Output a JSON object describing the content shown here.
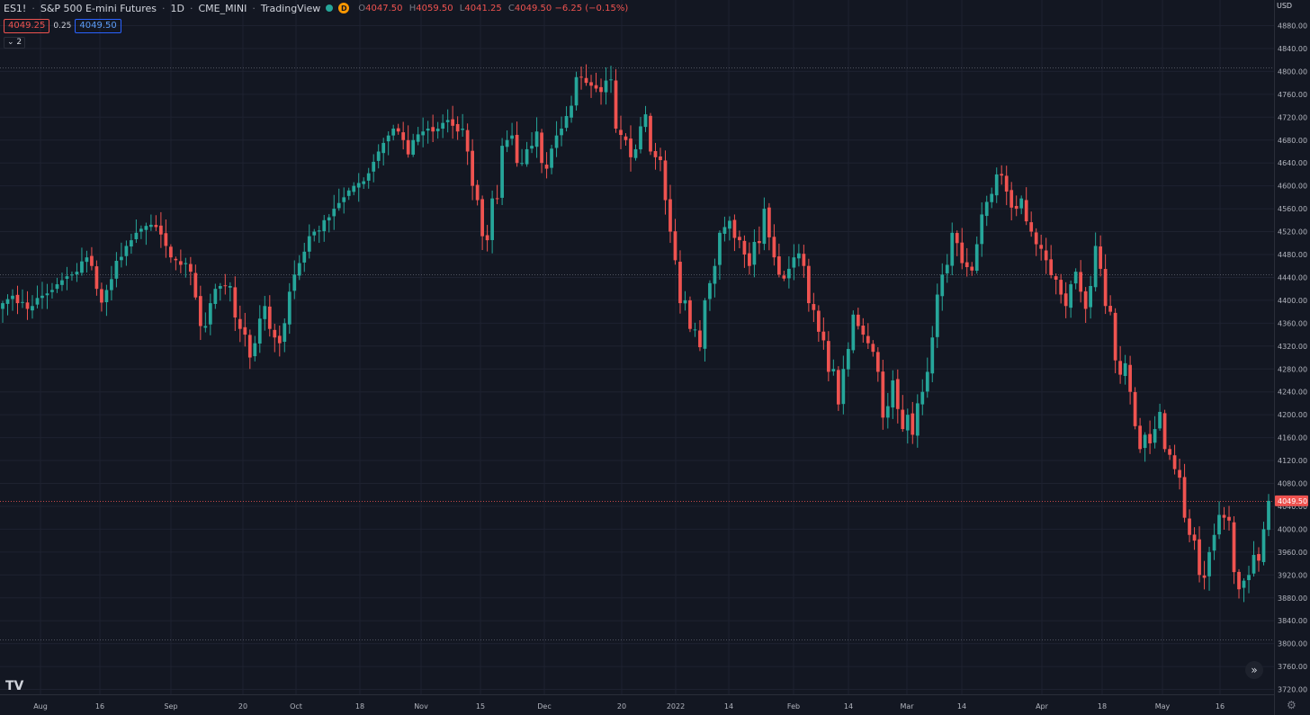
{
  "header": {
    "symbol": "ES1!",
    "name": "S&P 500 E-mini Futures",
    "interval": "1D",
    "exchange": "CME_MINI",
    "source": "TradingView",
    "status_letter": "D",
    "ohlc": {
      "o_label": "O",
      "o": "4047.50",
      "h_label": "H",
      "h": "4059.50",
      "l_label": "L",
      "l": "4041.25",
      "c_label": "C",
      "c": "4049.50",
      "change": "−6.25 (−0.15%)"
    }
  },
  "quote": {
    "bid": "4049.25",
    "spread": "0.25",
    "ask": "4049.50"
  },
  "indicators_toggle": "2",
  "axis": {
    "currency": "USD",
    "last_price_label": "4049.50",
    "price_ticks": [
      "4880.00",
      "4840.00",
      "4800.00",
      "4760.00",
      "4720.00",
      "4680.00",
      "4640.00",
      "4600.00",
      "4560.00",
      "4520.00",
      "4480.00",
      "4440.00",
      "4400.00",
      "4360.00",
      "4320.00",
      "4280.00",
      "4240.00",
      "4200.00",
      "4160.00",
      "4120.00",
      "4080.00",
      "4040.00",
      "4000.00",
      "3960.00",
      "3920.00",
      "3880.00",
      "3840.00",
      "3800.00",
      "3760.00",
      "3720.00"
    ],
    "time_ticks": [
      "Aug",
      "16",
      "Sep",
      "20",
      "Oct",
      "18",
      "Nov",
      "15",
      "Dec",
      "20",
      "2022",
      "14",
      "Feb",
      "14",
      "Mar",
      "14",
      "Apr",
      "18",
      "May",
      "16"
    ]
  },
  "icons": {
    "logo": "tradingview-logo-icon",
    "scroll": "double-chevron-right-icon",
    "settings": "gear-icon"
  },
  "chart_data": {
    "type": "candlestick",
    "title": "",
    "xlabel": "",
    "ylabel": "",
    "ylim": [
      3720,
      4880
    ],
    "colors": {
      "up": "#26a69a",
      "down": "#ef5350",
      "background": "#131722",
      "grid": "#1e2230"
    },
    "reference_lines": [
      4807,
      4446,
      4049.5,
      3807
    ],
    "last_price": 4049.5,
    "series": [
      {
        "name": "ES1!",
        "start": "2021-07-26",
        "close": [
          4395,
          4402,
          4408,
          4395,
          4397,
          4385,
          4390,
          4404,
          4408,
          4412,
          4418,
          4428,
          4435,
          4442,
          4445,
          4450,
          4468,
          4475,
          4460,
          4420,
          4396,
          4418,
          4437,
          4469,
          4476,
          4495,
          4505,
          4518,
          4525,
          4530,
          4532,
          4528,
          4515,
          4495,
          4475,
          4470,
          4462,
          4465,
          4450,
          4405,
          4355,
          4355,
          4395,
          4420,
          4425,
          4425,
          4425,
          4370,
          4350,
          4340,
          4300,
          4325,
          4368,
          4390,
          4350,
          4335,
          4325,
          4360,
          4415,
          4445,
          4465,
          4485,
          4512,
          4520,
          4522,
          4540,
          4545,
          4560,
          4570,
          4580,
          4592,
          4600,
          4605,
          4608,
          4622,
          4642,
          4660,
          4675,
          4688,
          4700,
          4695,
          4680,
          4655,
          4680,
          4690,
          4695,
          4700,
          4695,
          4700,
          4710,
          4715,
          4705,
          4695,
          4700,
          4660,
          4600,
          4575,
          4512,
          4505,
          4578,
          4578,
          4670,
          4680,
          4688,
          4640,
          4640,
          4664,
          4670,
          4695,
          4640,
          4630,
          4665,
          4688,
          4700,
          4722,
          4740,
          4790,
          4790,
          4780,
          4775,
          4770,
          4764,
          4784,
          4786,
          4700,
          4689,
          4680,
          4650,
          4664,
          4704,
          4725,
          4660,
          4650,
          4645,
          4575,
          4520,
          4470,
          4395,
          4400,
          4350,
          4349,
          4318,
          4400,
          4430,
          4460,
          4518,
          4528,
          4539,
          4509,
          4505,
          4480,
          4460,
          4502,
          4500,
          4560,
          4510,
          4475,
          4445,
          4438,
          4455,
          4475,
          4482,
          4460,
          4395,
          4383,
          4345,
          4330,
          4275,
          4280,
          4218,
          4280,
          4315,
          4375,
          4355,
          4340,
          4325,
          4310,
          4275,
          4195,
          4215,
          4260,
          4210,
          4175,
          4200,
          4165,
          4220,
          4240,
          4275,
          4335,
          4410,
          4445,
          4462,
          4518,
          4500,
          4465,
          4458,
          4452,
          4498,
          4550,
          4572,
          4586,
          4620,
          4618,
          4590,
          4562,
          4560,
          4578,
          4538,
          4520,
          4498,
          4490,
          4470,
          4444,
          4436,
          4410,
          4390,
          4428,
          4450,
          4415,
          4385,
          4425,
          4495,
          4455,
          4390,
          4380,
          4295,
          4270,
          4290,
          4240,
          4180,
          4140,
          4165,
          4150,
          4175,
          4205,
          4140,
          4130,
          4105,
          4090,
          4020,
          3990,
          3980,
          3920,
          3915,
          3960,
          3990,
          4025,
          4020,
          4015,
          3925,
          3895,
          3910,
          3920,
          3955,
          3945,
          4000,
          4049.5
        ]
      }
    ]
  }
}
